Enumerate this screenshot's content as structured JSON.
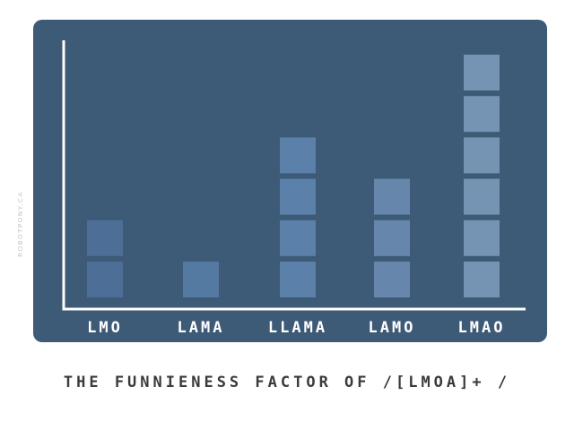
{
  "watermark": "ROBOTPONY.CA",
  "chart_data": {
    "type": "bar",
    "title": "THE FUNNIENESS FACTOR OF /[LMOA]+ /",
    "xlabel": "",
    "ylabel": "",
    "categories": [
      "LMO",
      "LAMA",
      "LLAMA",
      "LAMO",
      "LMAO"
    ],
    "values": [
      2,
      1,
      4,
      3,
      6
    ],
    "ylim": [
      0,
      6
    ],
    "grid": false,
    "colors": {
      "panel": "#3d5a77",
      "axis": "#ffffff",
      "label": "#ffffff",
      "bars": [
        "#4d6f97",
        "#557aa2",
        "#5b80aa",
        "#6687ab",
        "#7594b3"
      ]
    }
  }
}
